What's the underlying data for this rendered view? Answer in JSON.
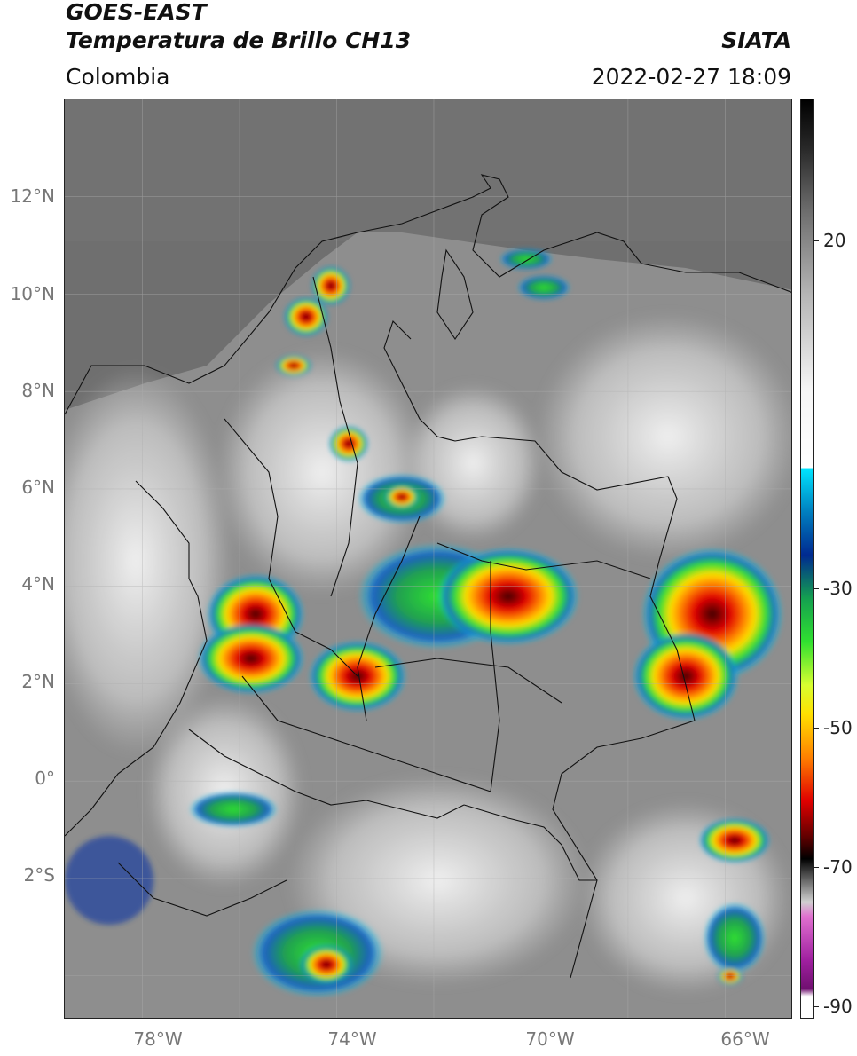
{
  "header": {
    "satellite": "GOES-EAST",
    "product": "Temperatura de Brillo CH13",
    "brand": "SIATA",
    "region": "Colombia",
    "timestamp": "2022-02-27 18:09"
  },
  "map": {
    "lat_labels": [
      "12°N",
      "10°N",
      "8°N",
      "6°N",
      "4°N",
      "2°N",
      "0°",
      "2°S"
    ],
    "lon_labels": [
      "78°W",
      "74°W",
      "70°W",
      "66°W"
    ],
    "extent": {
      "lon_min": -79.6,
      "lon_max": -64.6,
      "lat_min": -4.9,
      "lat_max": 14.0
    },
    "land_color": "#8c8c8c",
    "sea_color": "#6e6e6e"
  },
  "colorbar": {
    "labels": [
      "20",
      "-30",
      "-50",
      "-70",
      "-90"
    ],
    "range": [
      -92,
      35
    ],
    "stops": [
      {
        "t": 35,
        "c": "#000000"
      },
      {
        "t": 28,
        "c": "#2a2a2a"
      },
      {
        "t": 20,
        "c": "#6a6a6a"
      },
      {
        "t": 8,
        "c": "#b5b5b5"
      },
      {
        "t": -5,
        "c": "#f5f5f5"
      },
      {
        "t": -16,
        "c": "#ffffff"
      },
      {
        "t": -16.01,
        "c": "#00e5ff"
      },
      {
        "t": -22,
        "c": "#0080c0"
      },
      {
        "t": -28,
        "c": "#002a90"
      },
      {
        "t": -34,
        "c": "#14a050"
      },
      {
        "t": -40,
        "c": "#30e030"
      },
      {
        "t": -46,
        "c": "#d8ff30"
      },
      {
        "t": -50,
        "c": "#ffe000"
      },
      {
        "t": -56,
        "c": "#ff8000"
      },
      {
        "t": -62,
        "c": "#e00000"
      },
      {
        "t": -67,
        "c": "#600000"
      },
      {
        "t": -70,
        "c": "#000000"
      },
      {
        "t": -76,
        "c": "#d0d0d0"
      },
      {
        "t": -78,
        "c": "#e070d0"
      },
      {
        "t": -84,
        "c": "#a020a0"
      },
      {
        "t": -88,
        "c": "#701070"
      },
      {
        "t": -89,
        "c": "#ffffff"
      },
      {
        "t": -92,
        "c": "#ffffff"
      }
    ]
  }
}
